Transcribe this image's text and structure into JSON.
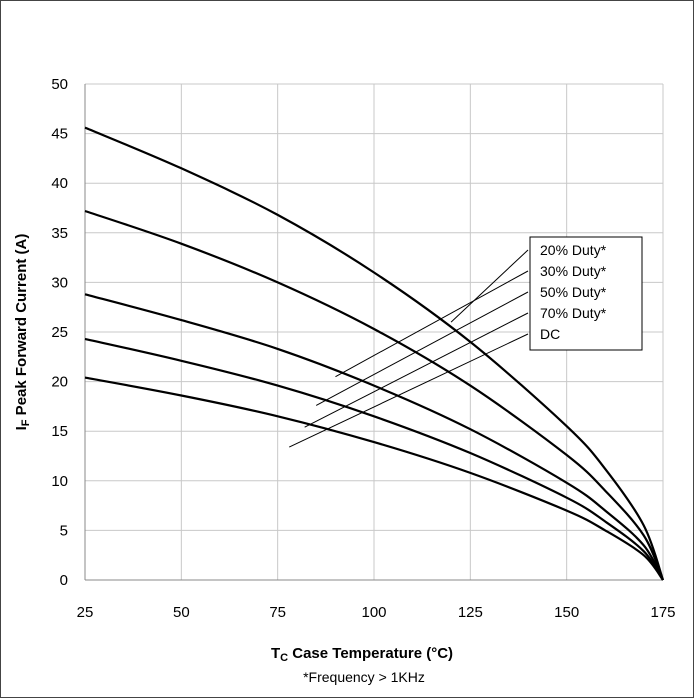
{
  "chart_data": {
    "type": "line",
    "xlabel_main": "T",
    "xlabel_sub": "C",
    "xlabel_rest": " Case Temperature (°C)",
    "ylabel_main": "I",
    "ylabel_sub": "F",
    "ylabel_rest": " Peak Forward Current (A)",
    "footnote": "*Frequency > 1KHz",
    "xlim": [
      25,
      175
    ],
    "ylim": [
      0,
      50
    ],
    "x_ticks": [
      "25",
      "50",
      "75",
      "100",
      "125",
      "150",
      "175"
    ],
    "y_ticks": [
      "0",
      "5",
      "10",
      "15",
      "20",
      "25",
      "30",
      "35",
      "40",
      "45",
      "50"
    ],
    "grid": true,
    "legend_position": "right",
    "series": [
      {
        "name": "20% Duty*",
        "x": [
          25,
          50,
          75,
          100,
          125,
          150,
          160,
          170,
          175
        ],
        "y": [
          45.6,
          41.5,
          36.8,
          31.0,
          24.0,
          15.5,
          11.2,
          5.5,
          0
        ]
      },
      {
        "name": "30% Duty*",
        "x": [
          25,
          50,
          75,
          100,
          125,
          150,
          160,
          170,
          175
        ],
        "y": [
          37.2,
          33.9,
          30.0,
          25.3,
          19.6,
          12.6,
          9.0,
          4.5,
          0
        ]
      },
      {
        "name": "50% Duty*",
        "x": [
          25,
          50,
          75,
          100,
          125,
          150,
          160,
          170,
          175
        ],
        "y": [
          28.8,
          26.2,
          23.3,
          19.6,
          15.2,
          9.8,
          7.0,
          3.5,
          0
        ]
      },
      {
        "name": "70% Duty*",
        "x": [
          25,
          50,
          75,
          100,
          125,
          150,
          160,
          170,
          175
        ],
        "y": [
          24.3,
          22.1,
          19.6,
          16.5,
          12.8,
          8.3,
          5.9,
          2.9,
          0
        ]
      },
      {
        "name": "DC",
        "x": [
          25,
          50,
          75,
          100,
          125,
          150,
          160,
          170,
          175
        ],
        "y": [
          20.4,
          18.6,
          16.5,
          13.9,
          10.8,
          7.0,
          5.0,
          2.5,
          0
        ]
      }
    ]
  }
}
